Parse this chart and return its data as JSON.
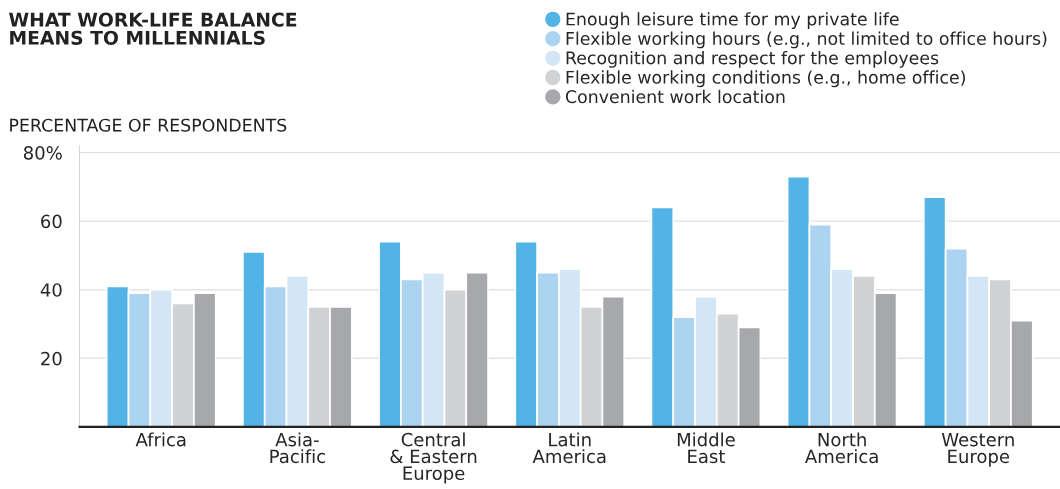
{
  "chart_data": {
    "type": "bar",
    "title": "WHAT WORK-LIFE BALANCE\nMEANS TO MILLENNIALS",
    "ylabel": "PERCENTAGE OF RESPONDENTS",
    "categories": [
      "Africa",
      "Asia-\nPacific",
      "Central\n& Eastern\nEurope",
      "Latin\nAmerica",
      "Middle\nEast",
      "North\nAmerica",
      "Western\nEurope"
    ],
    "series": [
      {
        "name": "Enough leisure time for my private life",
        "color": "#51b3e6",
        "values": [
          41,
          51,
          54,
          54,
          64,
          73,
          67
        ]
      },
      {
        "name": "Flexible working hours (e.g., not limited to office hours)",
        "color": "#acd4f1",
        "values": [
          39,
          41,
          43,
          45,
          32,
          59,
          52
        ]
      },
      {
        "name": "Recognition and respect for the employees",
        "color": "#d3e6f6",
        "values": [
          40,
          44,
          45,
          46,
          38,
          46,
          44
        ]
      },
      {
        "name": "Flexible working conditions (e.g., home office)",
        "color": "#d1d2d4",
        "values": [
          36,
          35,
          40,
          35,
          33,
          44,
          43
        ]
      },
      {
        "name": "Convenient work location",
        "color": "#a7a8ab",
        "values": [
          39,
          35,
          45,
          38,
          29,
          39,
          31
        ]
      }
    ],
    "ylim": [
      0,
      82
    ],
    "yticks": [
      20,
      40,
      60,
      {
        "value": 80,
        "label": "80%"
      }
    ],
    "grid": "y",
    "legend": "top right"
  }
}
